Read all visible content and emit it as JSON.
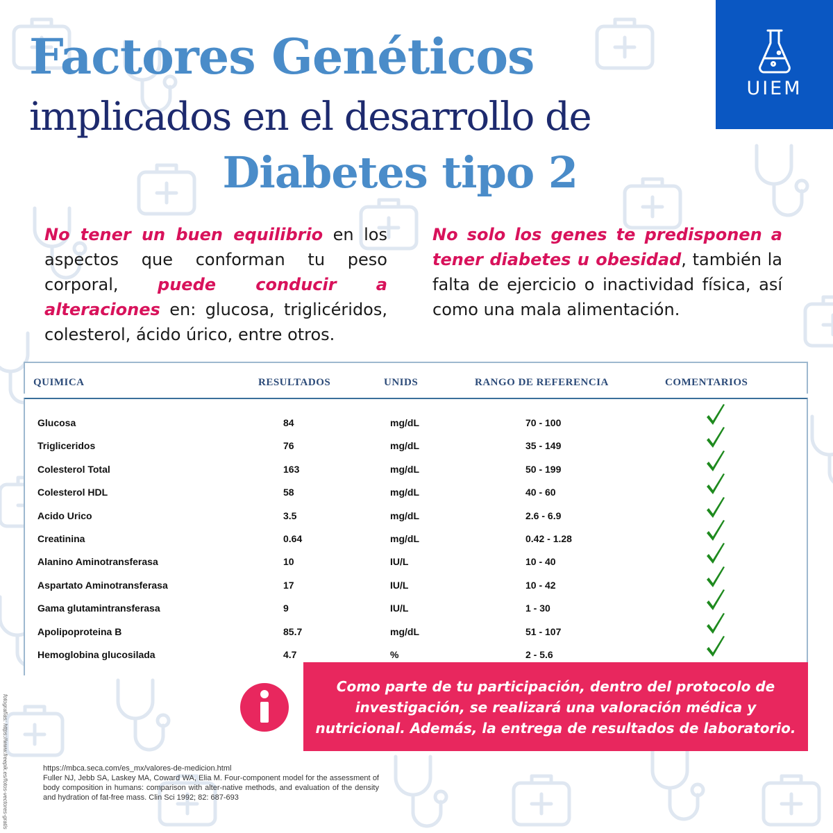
{
  "title": {
    "line1": "Factores Genéticos",
    "line2": "implicados en el desarrollo de",
    "line3": "Diabetes tipo 2"
  },
  "logo": {
    "text": "UIEM",
    "icon": "flask-icon",
    "color": "#0a57c2"
  },
  "paragraph_left": {
    "hl1": "No tener un buen equilibrio",
    "t1": " en los aspectos que conforman tu peso corporal, ",
    "hl2": "puede conducir a alteraciones",
    "t2": " en: glucosa, triglicéridos, colesterol, ácido úrico, entre otros."
  },
  "paragraph_right": {
    "hl1": "No solo los genes te predisponen a tener diabetes u obesidad",
    "t1": ", también la falta de ejercicio o inactividad física, así como una mala alimentación."
  },
  "table": {
    "headers": {
      "chem": "QUIMICA",
      "results": "RESULTADOS",
      "units": "UNIDS",
      "range": "RANGO DE REFERENCIA",
      "comments": "COMENTARIOS"
    },
    "rows": [
      {
        "name": "Glucosa",
        "result": "84",
        "unit": "mg/dL",
        "range": "70 - 100",
        "ok": true
      },
      {
        "name": "Trigliceridos",
        "result": "76",
        "unit": "mg/dL",
        "range": "35 - 149",
        "ok": true
      },
      {
        "name": "Colesterol Total",
        "result": "163",
        "unit": "mg/dL",
        "range": "50 - 199",
        "ok": true
      },
      {
        "name": "Colesterol HDL",
        "result": "58",
        "unit": "mg/dL",
        "range": "40 - 60",
        "ok": true
      },
      {
        "name": "Acido Urico",
        "result": "3.5",
        "unit": "mg/dL",
        "range": "2.6 - 6.9",
        "ok": true
      },
      {
        "name": "Creatinina",
        "result": "0.64",
        "unit": "mg/dL",
        "range": "0.42 - 1.28",
        "ok": true
      },
      {
        "name": "Alanino Aminotransferasa",
        "result": "10",
        "unit": "IU/L",
        "range": "10 - 40",
        "ok": true
      },
      {
        "name": "Aspartato Aminotransferasa",
        "result": "17",
        "unit": "IU/L",
        "range": "10 - 42",
        "ok": true
      },
      {
        "name": "Gama glutamintransferasa",
        "result": "9",
        "unit": "IU/L",
        "range": "1 - 30",
        "ok": true
      },
      {
        "name": "Apolipoproteina B",
        "result": "85.7",
        "unit": "mg/dL",
        "range": "51 - 107",
        "ok": true
      },
      {
        "name": "Hemoglobina glucosilada",
        "result": "4.7",
        "unit": "%",
        "range": "2 - 5.6",
        "ok": true
      }
    ]
  },
  "info_box": {
    "icon": "info-icon",
    "text": "Como parte de tu participación, dentro del protocolo de investigación, se realizará una valoración médica y nutricional. Además, la entrega de resultados de laboratorio."
  },
  "references": {
    "url": "https://mbca.seca.com/es_mx/valores-de-medicion.html",
    "citation": "Fuller NJ, Jebb SA, Laskey MA, Coward WA, Elia M. Four-component model for the assessment of body composition in humans: comparison with alter-native methods, and evaluation of the density and hydration of fat-free mass. Clin Sci 1992; 82: 687-693"
  },
  "photo_credit": "fotografías: https://www.freepik.es/fotos-vectores-gratis",
  "colors": {
    "title_blue": "#4a8cc9",
    "title_navy": "#1d2a6e",
    "highlight_pink": "#d8125b",
    "info_pink": "#e8275e",
    "check_green": "#1e8a1e"
  }
}
